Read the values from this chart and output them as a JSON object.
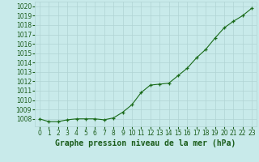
{
  "x": [
    0,
    1,
    2,
    3,
    4,
    5,
    6,
    7,
    8,
    9,
    10,
    11,
    12,
    13,
    14,
    15,
    16,
    17,
    18,
    19,
    20,
    21,
    22,
    23
  ],
  "y": [
    1008.0,
    1007.7,
    1007.7,
    1007.9,
    1008.0,
    1008.0,
    1008.0,
    1007.9,
    1008.1,
    1008.7,
    1009.5,
    1010.8,
    1011.6,
    1011.7,
    1011.8,
    1012.6,
    1013.4,
    1014.5,
    1015.4,
    1016.6,
    1017.7,
    1018.4,
    1019.0,
    1019.8
  ],
  "line_color": "#1a6b1a",
  "marker": "+",
  "marker_size": 3.5,
  "line_width": 0.8,
  "bg_color": "#c8eaea",
  "grid_color": "#b0d4d4",
  "title": "Graphe pression niveau de la mer (hPa)",
  "ylim": [
    1007.2,
    1020.5
  ],
  "xlim": [
    -0.5,
    23.5
  ],
  "yticks": [
    1008,
    1009,
    1010,
    1011,
    1012,
    1013,
    1014,
    1015,
    1016,
    1017,
    1018,
    1019,
    1020
  ],
  "xtick_labels": [
    "0",
    "1",
    "2",
    "3",
    "4",
    "5",
    "6",
    "7",
    "8",
    "9",
    "10",
    "11",
    "12",
    "13",
    "14",
    "15",
    "16",
    "17",
    "18",
    "19",
    "20",
    "21",
    "22",
    "23"
  ],
  "title_fontsize": 7,
  "tick_fontsize": 5.5,
  "title_color": "#1a5c1a",
  "tick_color": "#1a5c1a",
  "marker_color": "#1a6b1a"
}
